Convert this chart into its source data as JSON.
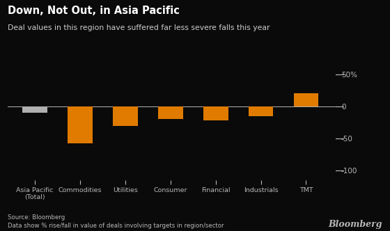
{
  "title": "Down, Not Out, in Asia Pacific",
  "subtitle": "Deal values in this region have suffered far less severe falls this year",
  "categories": [
    "Asia Pacific\n(Total)",
    "Commodities",
    "Utilities",
    "Consumer",
    "Financial",
    "Industrials",
    "TMT"
  ],
  "values": [
    -10,
    -58,
    -30,
    -20,
    -22,
    -15,
    20
  ],
  "bar_colors": [
    "#b0b0b0",
    "#e07b00",
    "#e07b00",
    "#e07b00",
    "#e07b00",
    "#e07b00",
    "#e07b00"
  ],
  "background_color": "#0a0a0a",
  "text_color": "#b8b8b8",
  "title_color": "#ffffff",
  "subtitle_color": "#cccccc",
  "ylim": [
    -115,
    65
  ],
  "yticks": [
    50,
    0,
    -50,
    -100
  ],
  "ytick_labels": [
    "50%",
    "0",
    "-50",
    "-100"
  ],
  "source_text": "Source: Bloomberg\nData show % rise/fall in value of deals involving targets in region/sector",
  "bloomberg_label": "Bloomberg"
}
